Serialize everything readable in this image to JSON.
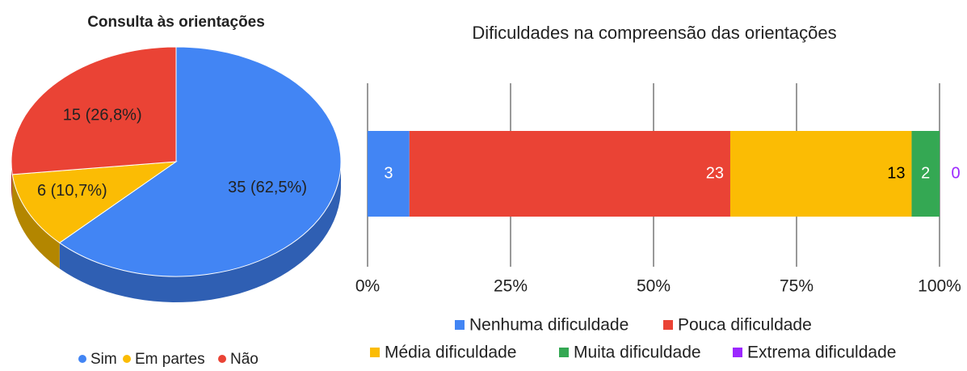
{
  "chart_data": [
    {
      "type": "pie3d",
      "title": "Consulta às orientações",
      "categories": [
        "Sim",
        "Em partes",
        "Não"
      ],
      "values": [
        35,
        6,
        15
      ],
      "value_labels": [
        "35 (62,5%)",
        "6 (10,7%)",
        "15 (26,8%)"
      ],
      "colors": [
        "#4285f4",
        "#fbbc04",
        "#ea4335"
      ],
      "side_colors": [
        "#2f5fb3",
        "#b38600",
        "#a82e25"
      ],
      "legend": "bottom"
    },
    {
      "type": "stacked_bar_percent",
      "title": "Dificuldades na compreensão das orientações",
      "series": [
        {
          "name": "Nenhuma dificuldade",
          "color": "#4285f4",
          "label_color": "#ffffff",
          "values": [
            3
          ]
        },
        {
          "name": "Pouca dificuldade",
          "color": "#ea4335",
          "label_color": "#ffffff",
          "values": [
            23
          ]
        },
        {
          "name": "Média dificuldade",
          "color": "#fbbc04",
          "label_color": "#000000",
          "values": [
            13
          ]
        },
        {
          "name": "Muita dificuldade",
          "color": "#34a853",
          "label_color": "#ffffff",
          "values": [
            2
          ]
        },
        {
          "name": "Extrema dificuldade",
          "color": "#9c27ff",
          "label_color": "#9c27ff",
          "values": [
            0
          ]
        }
      ],
      "xlim": [
        0,
        100
      ],
      "xticks": [
        {
          "value": 0,
          "label": "0%"
        },
        {
          "value": 25,
          "label": "25%"
        },
        {
          "value": 50,
          "label": "50%"
        },
        {
          "value": 75,
          "label": "75%"
        },
        {
          "value": 100,
          "label": "100%"
        }
      ],
      "grid": true,
      "legend": "bottom"
    }
  ]
}
